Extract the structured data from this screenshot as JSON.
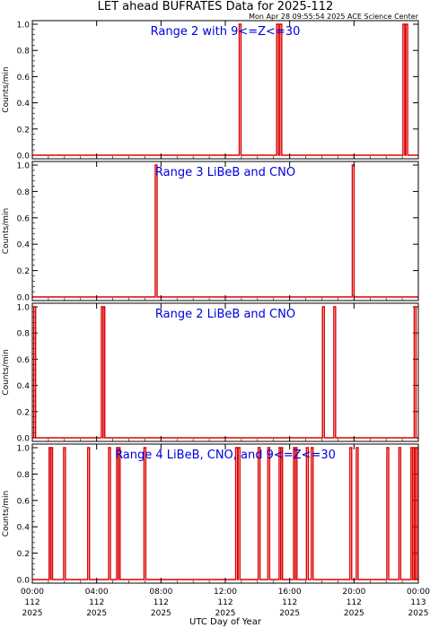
{
  "title": "LET ahead BUFRATES Data for 2025-112",
  "timestamp": "Mon Apr 28 09:55:54 2025 ACE Science Center",
  "xlabel": "UTC Day of Year",
  "colors": {
    "series": "#dd0000",
    "panel_label": "#0000dd",
    "frame": "#000000"
  },
  "chart_data": [
    {
      "type": "line",
      "title": "Range 2 with 9<=Z<=30",
      "ylabel": "Counts/min",
      "ylim": [
        0,
        1.0
      ],
      "yticks": [
        "0.0",
        "0.2",
        "0.4",
        "0.6",
        "0.8",
        "1.0"
      ],
      "xlim": [
        0,
        24
      ],
      "spikes_hours": [
        12.92,
        15.25,
        15.45,
        23.1,
        23.28
      ]
    },
    {
      "type": "line",
      "title": "Range 3 LiBeB and CNO",
      "ylabel": "Counts/min",
      "ylim": [
        0,
        1.0
      ],
      "yticks": [
        "0.0",
        "0.2",
        "0.4",
        "0.6",
        "0.8",
        "1.0"
      ],
      "xlim": [
        0,
        24
      ],
      "spikes_hours": [
        7.7,
        19.95
      ]
    },
    {
      "type": "line",
      "title": "Range 2 LiBeB and CNO",
      "ylabel": "Counts/min",
      "ylim": [
        0,
        1.0
      ],
      "yticks": [
        "0.0",
        "0.2",
        "0.4",
        "0.6",
        "0.8",
        "1.0"
      ],
      "xlim": [
        0,
        24
      ],
      "spikes_hours": [
        0.15,
        4.35,
        4.45,
        18.1,
        18.8,
        23.8
      ]
    },
    {
      "type": "line",
      "title": "Range 4 LiBeB, CNO, and 9<=Z<=30",
      "ylabel": "Counts/min",
      "ylim": [
        0,
        1.0
      ],
      "yticks": [
        "0.0",
        "0.2",
        "0.4",
        "0.6",
        "0.8",
        "1.0"
      ],
      "xlim": [
        0,
        24
      ],
      "spikes_hours": [
        1.1,
        1.2,
        2.0,
        3.5,
        4.8,
        5.3,
        5.4,
        7.0,
        12.7,
        12.85,
        14.1,
        14.7,
        15.4,
        15.5,
        16.3,
        16.4,
        17.1,
        17.4,
        19.8,
        20.2,
        22.1,
        22.85,
        23.6,
        23.7,
        23.9
      ]
    }
  ],
  "xticks": [
    {
      "hour": 0,
      "lines": [
        "00:00",
        "112",
        "2025"
      ]
    },
    {
      "hour": 4,
      "lines": [
        "04:00",
        "112",
        "2025"
      ]
    },
    {
      "hour": 8,
      "lines": [
        "08:00",
        "112",
        "2025"
      ]
    },
    {
      "hour": 12,
      "lines": [
        "12:00",
        "112",
        "2025"
      ]
    },
    {
      "hour": 16,
      "lines": [
        "16:00",
        "112",
        "2025"
      ]
    },
    {
      "hour": 20,
      "lines": [
        "20:00",
        "112",
        "2025"
      ]
    },
    {
      "hour": 24,
      "lines": [
        "00:00",
        "113",
        "2025"
      ]
    }
  ]
}
